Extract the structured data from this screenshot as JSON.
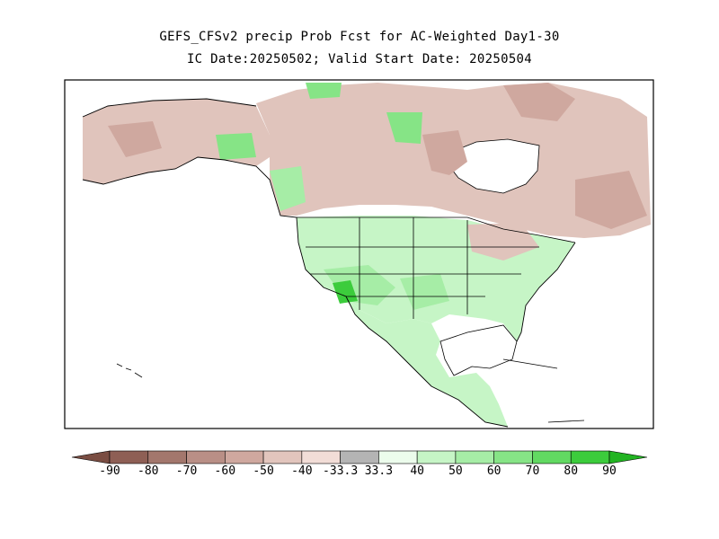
{
  "header": {
    "title_line1": "GEFS_CFSv2 precip Prob Fcst for AC-Weighted Day1-30",
    "title_line2": "IC Date:20250502; Valid Start Date: 20250504"
  },
  "colorbar": {
    "bins": [
      {
        "color": "#7a4d42"
      },
      {
        "color": "#8e5f55"
      },
      {
        "color": "#a3776d"
      },
      {
        "color": "#b98f86"
      },
      {
        "color": "#cfa89f"
      },
      {
        "color": "#e2c5bd"
      },
      {
        "color": "#f2ddd7"
      },
      {
        "color": "#b4b4b4"
      },
      {
        "color": "#ecfcec"
      },
      {
        "color": "#c6f5c6"
      },
      {
        "color": "#a6eda6"
      },
      {
        "color": "#86e486"
      },
      {
        "color": "#62d962"
      },
      {
        "color": "#3ccc3c"
      },
      {
        "color": "#22b422"
      }
    ],
    "labels": [
      "-90",
      "-80",
      "-70",
      "-60",
      "-50",
      "-40",
      "-33.3",
      "33.3",
      "40",
      "50",
      "60",
      "70",
      "80",
      "90"
    ]
  },
  "map": {
    "colors": {
      "land_dry": "#e0c4bc",
      "land_dry_mid": "#cfa89f",
      "land_dry_strong": "#b98f86",
      "land_wet": "#c6f5c6",
      "land_wet_mid": "#86e486",
      "land_wet_strong": "#3ccc3c",
      "water": "#ffffff",
      "border": "#000000"
    }
  }
}
